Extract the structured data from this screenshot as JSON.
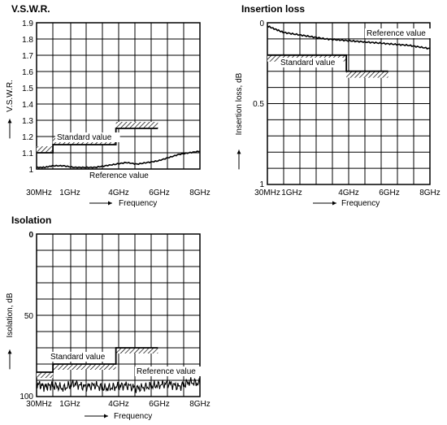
{
  "chart_data": [
    {
      "type": "line",
      "title": "V.S.W.R.",
      "xlabel": "Frequency",
      "ylabel": "V.S.W.R.",
      "x_ticks": [
        "30MHz",
        "1GHz",
        "4GHz",
        "6GHz",
        "8GHz"
      ],
      "y_ticks": [
        "1",
        "1.1",
        "1.2",
        "1.3",
        "1.4",
        "1.5",
        "1.6",
        "1.7",
        "1.8",
        "1.9"
      ],
      "ylim": [
        1,
        1.9
      ],
      "grid": true,
      "annotations": [
        "Standard value",
        "Reference value"
      ],
      "standard_value": [
        {
          "from": "30MHz",
          "to": "1GHz",
          "value": 1.1
        },
        {
          "from": "1GHz",
          "to": "4GHz",
          "value": 1.15
        },
        {
          "from": "4GHz",
          "to": "6GHz",
          "value": 1.25
        }
      ],
      "reference_value": {
        "x_ghz": [
          0.03,
          0.5,
          1.0,
          1.5,
          2.0,
          2.5,
          3.0,
          3.5,
          4.0,
          4.5,
          5.0,
          5.5,
          6.0,
          6.5,
          7.0,
          7.5,
          8.0
        ],
        "y": [
          1.01,
          1.01,
          1.02,
          1.02,
          1.01,
          1.01,
          1.01,
          1.02,
          1.03,
          1.04,
          1.03,
          1.04,
          1.05,
          1.07,
          1.09,
          1.1,
          1.11
        ]
      }
    },
    {
      "type": "line",
      "title": "Insertion loss",
      "xlabel": "Frequency",
      "ylabel": "Insertion loss, dB",
      "x_ticks": [
        "30MHz",
        "1GHz",
        "4GHz",
        "6GHz",
        "8GHz"
      ],
      "y_ticks": [
        "0",
        "0.5",
        "1"
      ],
      "ylim": [
        1,
        0
      ],
      "grid": true,
      "annotations": [
        "Reference value",
        "Standard value"
      ],
      "standard_value": [
        {
          "from": "30MHz",
          "to": "4GHz",
          "value": 0.2
        },
        {
          "from": "4GHz",
          "to": "6GHz",
          "value": 0.3
        }
      ],
      "reference_value": {
        "x_ghz": [
          0.03,
          0.5,
          1.0,
          2.0,
          3.0,
          4.0,
          5.0,
          6.0,
          7.0,
          8.0
        ],
        "y": [
          0.02,
          0.04,
          0.06,
          0.08,
          0.1,
          0.11,
          0.12,
          0.13,
          0.14,
          0.16
        ]
      }
    },
    {
      "type": "line",
      "title": "Isolation",
      "xlabel": "Frequency",
      "ylabel": "Isolation, dB",
      "x_ticks": [
        "30MHz",
        "1GHz",
        "4GHz",
        "6GHz",
        "8GHz"
      ],
      "y_ticks": [
        "0",
        "50",
        "100"
      ],
      "ylim": [
        100,
        0
      ],
      "grid": true,
      "annotations": [
        "Standard value",
        "Reference value"
      ],
      "standard_value": [
        {
          "from": "30MHz",
          "to": "1GHz",
          "value": 85
        },
        {
          "from": "1GHz",
          "to": "4GHz",
          "value": 80
        },
        {
          "from": "4GHz",
          "to": "6GHz",
          "value": 70
        }
      ],
      "reference_value": {
        "x_ghz": [
          0.03,
          0.5,
          1.0,
          1.5,
          2.0,
          2.5,
          3.0,
          3.5,
          4.0,
          4.5,
          5.0,
          5.5,
          6.0,
          6.5,
          7.0,
          7.5,
          8.0
        ],
        "y": [
          92,
          94,
          93,
          95,
          92,
          94,
          93,
          95,
          94,
          93,
          95,
          94,
          93,
          92,
          94,
          91,
          92
        ]
      }
    }
  ]
}
